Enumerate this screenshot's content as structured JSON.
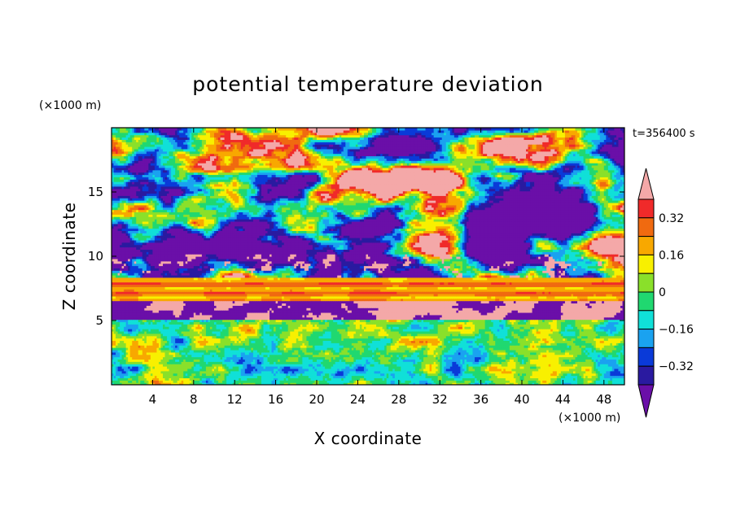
{
  "chart_data": {
    "type": "heatmap",
    "title": "potential temperature deviation",
    "xlabel": "X coordinate",
    "ylabel": "Z coordinate",
    "x_unit": "(×1000 m)",
    "y_unit": "(×1000 m)",
    "time_label": "t=356400 s",
    "xlim": [
      0,
      50
    ],
    "ylim": [
      0,
      20
    ],
    "x_ticks": [
      4,
      8,
      12,
      16,
      20,
      24,
      28,
      32,
      36,
      40,
      44,
      48
    ],
    "y_ticks": [
      5,
      10,
      15
    ],
    "colorbar": {
      "levels": [
        -0.4,
        -0.32,
        -0.24,
        -0.16,
        -0.08,
        0,
        0.08,
        0.16,
        0.24,
        0.32,
        0.4
      ],
      "labels": [
        "0.32",
        "0.16",
        "0",
        "−0.16",
        "−0.32"
      ],
      "label_values": [
        0.32,
        0.16,
        0,
        -0.16,
        -0.32
      ],
      "colors": [
        "#6a0fa8",
        "#2a1aa0",
        "#0a3ad8",
        "#1aa2f0",
        "#10e0d8",
        "#20d870",
        "#8ae02a",
        "#f8f000",
        "#f8a800",
        "#f06a10",
        "#f02a2a",
        "#f4a8a8"
      ],
      "extend": "both"
    },
    "grid": false
  }
}
